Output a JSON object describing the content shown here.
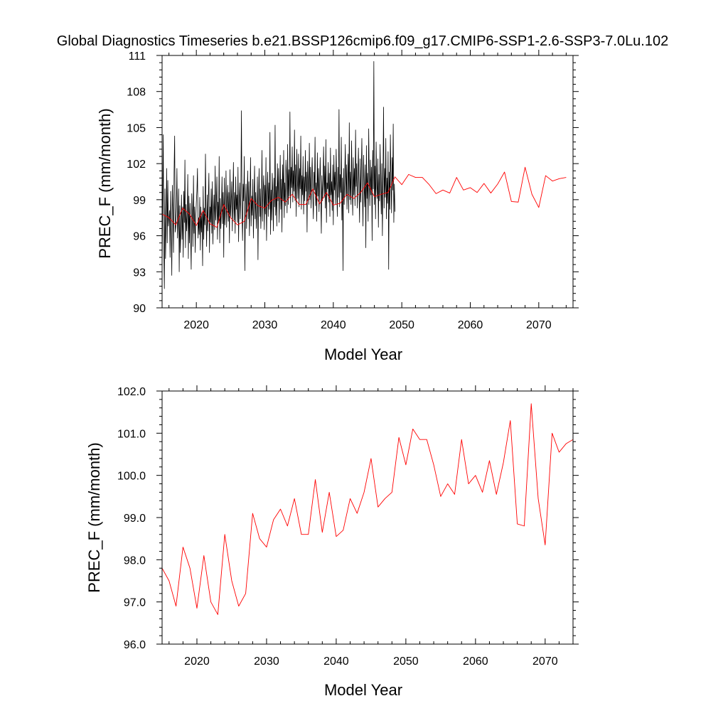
{
  "title": "Global Diagnostics Timeseries b.e21.BSSP126cmip6.f09_g17.CMIP6-SSP1-2.6-SSP3-7.0Lu.102",
  "colors": {
    "monthly_line": "#000000",
    "annual_line": "#ff0000",
    "frame": "#000000",
    "background": "#ffffff"
  },
  "chart_data": [
    {
      "type": "line",
      "title": "Global Diagnostics Timeseries b.e21.BSSP126cmip6.f09_g17.CMIP6-SSP1-2.6-SSP3-7.0Lu.102",
      "xlabel": "Model Year",
      "ylabel": "PREC_F (mm/month)",
      "xlim": [
        2015,
        2075
      ],
      "ylim": [
        90,
        111
      ],
      "x_ticks": [
        2020,
        2030,
        2040,
        2050,
        2060,
        2070
      ],
      "x_tick_labels": [
        "2020",
        "2030",
        "2040",
        "2050",
        "2060",
        "2070"
      ],
      "y_ticks": [
        90,
        93,
        96,
        99,
        102,
        105,
        108,
        111
      ],
      "y_tick_labels": [
        "90",
        "93",
        "96",
        "99",
        "102",
        "105",
        "108",
        "111"
      ],
      "grid": false,
      "series": [
        {
          "color": "#000000",
          "resolution": "monthly",
          "x_start": 2015.0,
          "x_step": 0.0833333,
          "values": [
            93.2,
            98.4,
            104.4,
            95.0,
            91.6,
            99.9,
            94.1,
            96.9,
            101.6,
            95.4,
            100.6,
            96.8,
            97.5,
            98.1,
            94.2,
            99.7,
            96.9,
            92.7,
            100.2,
            98.1,
            94.6,
            101.3,
            104.3,
            96.3,
            96.8,
            98.3,
            101.6,
            95.8,
            97.2,
            99.9,
            93.0,
            98.5,
            94.6,
            96.7,
            99.4,
            95.7,
            98.4,
            94.2,
            99.7,
            97.1,
            102.3,
            95.0,
            98.6,
            96.4,
            97.7,
            101.1,
            94.1,
            99.3,
            95.4,
            98.7,
            96.0,
            93.2,
            99.5,
            97.8,
            95.1,
            101.0,
            96.2,
            98.4,
            94.6,
            97.4,
            98.8,
            99.7,
            101.6,
            95.8,
            97.5,
            96.1,
            99.2,
            94.8,
            98.4,
            96.3,
            97.9,
            93.5,
            100.1,
            95.7,
            98.3,
            96.9,
            102.8,
            97.6,
            95.1,
            99.4,
            96.4,
            98.9,
            101.2,
            94.6,
            98.4,
            97.1,
            99.9,
            96.2,
            100.5,
            95.3,
            97.8,
            99.4,
            96.5,
            101.8,
            97.3,
            98.6,
            100.9,
            95.7,
            98.8,
            97.1,
            102.6,
            95.4,
            99.1,
            96.6,
            98.2,
            100.9,
            97.0,
            99.6,
            94.2,
            100.8,
            96.9,
            98.2,
            101.4,
            96.7,
            98.7,
            100.2,
            97.2,
            99.6,
            95.4,
            101.5,
            97.6,
            98.7,
            100.5,
            96.4,
            99.0,
            102.1,
            97.3,
            99.6,
            96.2,
            100.9,
            98.2,
            99.4,
            97.1,
            101.7,
            95.5,
            98.8,
            100.4,
            97.4,
            99.5,
            106.4,
            97.8,
            95.6,
            100.3,
            98.9,
            102.6,
            93.1,
            98.4,
            100.3,
            96.6,
            99.1,
            101.4,
            97.4,
            100.5,
            96.0,
            98.7,
            102.5,
            96.8,
            99.3,
            97.7,
            100.7,
            95.8,
            98.9,
            101.8,
            97.4,
            99.6,
            96.6,
            98.1,
            100.9,
            94.0,
            99.2,
            101.6,
            97.6,
            99.9,
            96.6,
            98.4,
            103.1,
            97.2,
            99.7,
            101.0,
            96.5,
            100.2,
            97.8,
            102.5,
            95.6,
            99.2,
            101.3,
            97.6,
            100.4,
            98.2,
            104.6,
            96.1,
            99.8,
            97.3,
            101.2,
            99.4,
            96.4,
            100.8,
            98.4,
            105.2,
            97.7,
            100.1,
            96.8,
            102.0,
            98.9,
            101.6,
            97.1,
            99.5,
            102.7,
            98.2,
            100.7,
            96.3,
            101.9,
            98.9,
            103.1,
            97.5,
            100.4,
            98.5,
            102.3,
            101.1,
            97.9,
            103.6,
            98.6,
            101.5,
            99.3,
            106.3,
            98.3,
            101.7,
            100.0,
            103.4,
            98.8,
            101.4,
            99.7,
            104.8,
            98.9,
            101.9,
            97.6,
            103.2,
            100.7,
            99.1,
            102.8,
            98.4,
            101.6,
            99.9,
            104.3,
            98.2,
            101.0,
            99.4,
            102.6,
            97.8,
            100.9,
            98.9,
            103.1,
            99.7,
            101.3,
            96.3,
            102.2,
            100.5,
            98.6,
            103.7,
            99.0,
            101.7,
            98.3,
            100.8,
            102.5,
            99.4,
            97.4,
            101.3,
            99.8,
            104.2,
            98.5,
            100.4,
            97.2,
            102.9,
            99.3,
            101.6,
            98.0,
            100.1,
            102.5,
            99.6,
            96.2,
            101.0,
            98.9,
            100.7,
            103.4,
            99.2,
            101.8,
            98.3,
            104.0,
            97.1,
            100.4,
            99.9,
            102.1,
            98.8,
            101.2,
            97.6,
            103.3,
            99.4,
            100.5,
            98.1,
            101.9,
            96.9,
            102.7,
            99.8,
            101.3,
            98.6,
            103.2,
            100.4,
            97.6,
            101.7,
            99.2,
            106.5,
            98.4,
            101.1,
            99.6,
            104.2,
            97.3,
            100.8,
            93.1,
            101.6,
            98.6,
            100.9,
            103.6,
            99.3,
            101.9,
            98.2,
            100.4,
            102.8,
            97.9,
            105.4,
            99.0,
            101.3,
            98.6,
            103.9,
            100.2,
            97.7,
            102.5,
            99.4,
            101.6,
            98.5,
            104.8,
            100.1,
            102.0,
            98.3,
            100.9,
            103.3,
            99.6,
            97.1,
            102.4,
            98.8,
            101.0,
            104.1,
            99.7,
            96.8,
            102.7,
            100.3,
            98.4,
            101.9,
            95.0,
            103.5,
            99.1,
            101.2,
            97.2,
            104.9,
            100.6,
            98.5,
            102.3,
            99.4,
            101.7,
            95.6,
            103.1,
            99.9,
            110.5,
            98.6,
            101.8,
            97.4,
            103.8,
            100.3,
            99.1,
            102.4,
            96.7,
            101.1,
            98.9,
            103.6,
            100.2,
            97.8,
            102.0,
            96.0,
            100.5,
            106.7,
            98.3,
            101.6,
            99.2,
            104.1,
            97.4,
            100.8,
            98.7,
            103.0,
            93.2,
            101.3,
            98.2,
            104.4,
            100.6,
            97.9,
            102.5,
            99.8,
            105.3,
            97.1,
            100.3,
            98.0
          ]
        },
        {
          "color": "#ff0000",
          "resolution": "annual",
          "x": [
            2015.0,
            2016.0,
            2017.0,
            2018.0,
            2019.0,
            2020.0,
            2021.0,
            2022.0,
            2023.0,
            2024.0,
            2025.0,
            2026.0,
            2027.0,
            2028.0,
            2029.0,
            2030.0,
            2031.0,
            2032.0,
            2033.0,
            2034.0,
            2035.0,
            2036.0,
            2037.0,
            2038.0,
            2039.0,
            2040.0,
            2041.0,
            2042.0,
            2043.0,
            2044.0,
            2045.0,
            2046.0,
            2047.0,
            2048.0,
            2049.0,
            2050.0,
            2051.0,
            2052.0,
            2053.0,
            2054.0,
            2055.0,
            2056.0,
            2057.0,
            2058.0,
            2059.0,
            2060.0,
            2061.0,
            2062.0,
            2063.0,
            2064.0,
            2065.0,
            2066.0,
            2067.0,
            2068.0,
            2069.0,
            2070.0,
            2071.0,
            2072.0,
            2073.0,
            2074.0
          ],
          "values": [
            97.8,
            97.5,
            96.9,
            98.3,
            97.8,
            96.85,
            98.1,
            97.0,
            96.7,
            98.6,
            97.5,
            96.9,
            97.2,
            99.1,
            98.5,
            98.3,
            98.95,
            99.2,
            98.8,
            99.45,
            98.6,
            98.6,
            99.9,
            98.65,
            99.6,
            98.55,
            98.7,
            99.45,
            99.1,
            99.6,
            100.4,
            99.25,
            99.45,
            99.6,
            100.9,
            100.25,
            101.1,
            100.85,
            100.85,
            100.25,
            99.5,
            99.8,
            99.55,
            100.85,
            99.8,
            100.0,
            99.6,
            100.35,
            99.55,
            100.3,
            101.3,
            98.85,
            98.8,
            101.7,
            99.45,
            98.35,
            101.0,
            100.55,
            100.75,
            100.85
          ]
        }
      ]
    },
    {
      "type": "line",
      "xlabel": "Model Year",
      "ylabel": "PREC_F (mm/month)",
      "xlim": [
        2015,
        2074
      ],
      "ylim": [
        96,
        102
      ],
      "x_ticks": [
        2020,
        2030,
        2040,
        2050,
        2060,
        2070
      ],
      "x_tick_labels": [
        "2020",
        "2030",
        "2040",
        "2050",
        "2060",
        "2070"
      ],
      "y_ticks": [
        96,
        97,
        98,
        99,
        100,
        101,
        102
      ],
      "y_tick_labels": [
        "96.0",
        "97.0",
        "98.0",
        "99.0",
        "100.0",
        "101.0",
        "102.0"
      ],
      "grid": false,
      "series": [
        {
          "color": "#ff0000",
          "resolution": "annual",
          "x": [
            2015.0,
            2016.0,
            2017.0,
            2018.0,
            2019.0,
            2020.0,
            2021.0,
            2022.0,
            2023.0,
            2024.0,
            2025.0,
            2026.0,
            2027.0,
            2028.0,
            2029.0,
            2030.0,
            2031.0,
            2032.0,
            2033.0,
            2034.0,
            2035.0,
            2036.0,
            2037.0,
            2038.0,
            2039.0,
            2040.0,
            2041.0,
            2042.0,
            2043.0,
            2044.0,
            2045.0,
            2046.0,
            2047.0,
            2048.0,
            2049.0,
            2050.0,
            2051.0,
            2052.0,
            2053.0,
            2054.0,
            2055.0,
            2056.0,
            2057.0,
            2058.0,
            2059.0,
            2060.0,
            2061.0,
            2062.0,
            2063.0,
            2064.0,
            2065.0,
            2066.0,
            2067.0,
            2068.0,
            2069.0,
            2070.0,
            2071.0,
            2072.0,
            2073.0,
            2074.0
          ],
          "values": [
            97.8,
            97.5,
            96.9,
            98.3,
            97.8,
            96.85,
            98.1,
            97.0,
            96.7,
            98.6,
            97.5,
            96.9,
            97.2,
            99.1,
            98.5,
            98.3,
            98.95,
            99.2,
            98.8,
            99.45,
            98.6,
            98.6,
            99.9,
            98.65,
            99.6,
            98.55,
            98.7,
            99.45,
            99.1,
            99.6,
            100.4,
            99.25,
            99.45,
            99.6,
            100.9,
            100.25,
            101.1,
            100.85,
            100.85,
            100.25,
            99.5,
            99.8,
            99.55,
            100.85,
            99.8,
            100.0,
            99.6,
            100.35,
            99.55,
            100.3,
            101.3,
            98.85,
            98.8,
            101.7,
            99.45,
            98.35,
            101.0,
            100.55,
            100.75,
            100.85
          ]
        }
      ]
    }
  ]
}
